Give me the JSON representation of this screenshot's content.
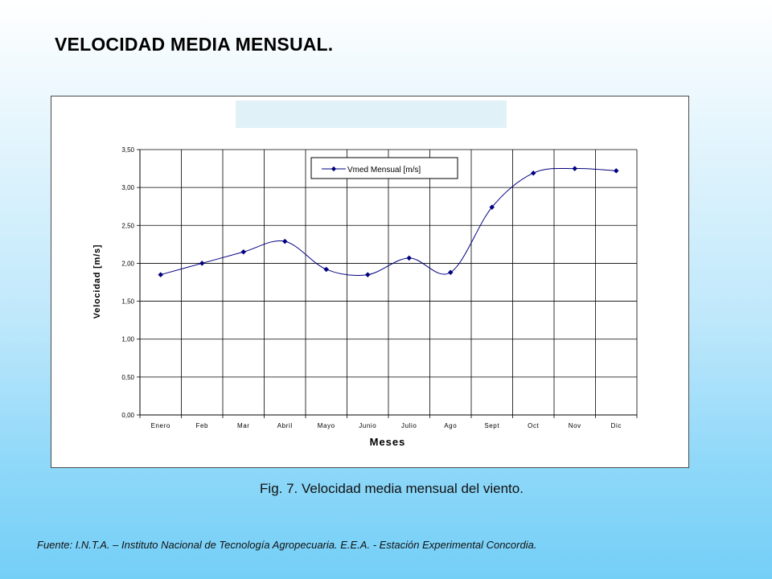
{
  "page": {
    "title": "VELOCIDAD MEDIA MENSUAL.",
    "caption": "Fig. 7. Velocidad media mensual del viento.",
    "source": "Fuente: I.N.T.A. – Instituto Nacional de Tecnología Agropecuaria. E.E.A. - Estación Experimental Concordia.",
    "background_top": "#ffffff",
    "background_bottom": "#74cff7"
  },
  "chart_data": {
    "type": "line",
    "title": "",
    "xlabel": "Meses",
    "ylabel": "Velocidad [m/s]",
    "categories": [
      "Enero",
      "Feb",
      "Mar",
      "Abril",
      "Mayo",
      "Junio",
      "Julio",
      "Ago",
      "Sept",
      "Oct",
      "Nov",
      "Dic"
    ],
    "ylim": [
      0,
      3.5
    ],
    "yticks": [
      "0,00",
      "0,50",
      "1,00",
      "1,50",
      "2,00",
      "2,50",
      "3,00",
      "3,50"
    ],
    "grid": true,
    "smooth": true,
    "legend_position": "top",
    "series": [
      {
        "name": "Vmed Mensual [m/s]",
        "color": "#000080",
        "marker": "diamond",
        "values": [
          1.85,
          2.0,
          2.15,
          2.29,
          1.92,
          1.85,
          2.07,
          1.88,
          2.74,
          3.19,
          3.25,
          3.22
        ]
      }
    ]
  }
}
